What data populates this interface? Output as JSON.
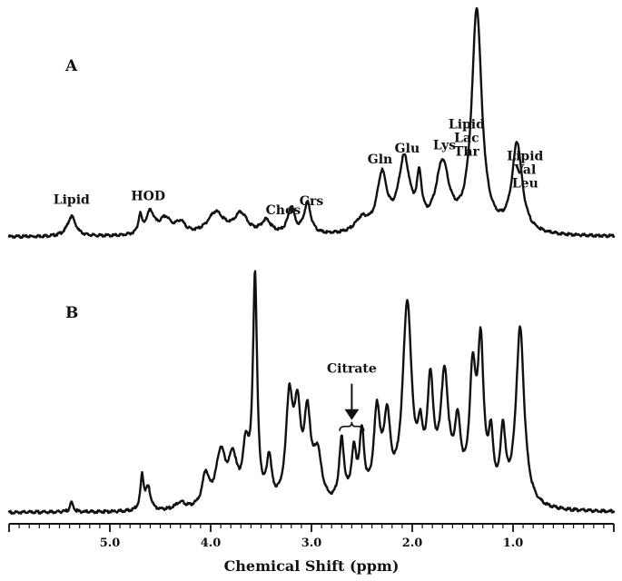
{
  "chart_data": {
    "type": "line",
    "xlabel": "Chemical Shift (ppm)",
    "xlim": [
      6.0,
      0.0
    ],
    "x_reversed": true,
    "x_ticks": [
      {
        "value": 5.0,
        "label": "5.0"
      },
      {
        "value": 4.0,
        "label": "4.0"
      },
      {
        "value": 3.0,
        "label": "3.0"
      },
      {
        "value": 2.0,
        "label": "2.0"
      },
      {
        "value": 1.0,
        "label": "1.0"
      }
    ],
    "panels": [
      {
        "label": "A",
        "baseline": 0.02,
        "peaks": [
          {
            "ppm": 5.38,
            "height": 0.09,
            "width": 0.05
          },
          {
            "ppm": 4.7,
            "height": 0.08,
            "width": 0.02
          },
          {
            "ppm": 4.6,
            "height": 0.1,
            "width": 0.05
          },
          {
            "ppm": 4.45,
            "height": 0.07,
            "width": 0.07
          },
          {
            "ppm": 4.3,
            "height": 0.05,
            "width": 0.06
          },
          {
            "ppm": 3.95,
            "height": 0.1,
            "width": 0.1
          },
          {
            "ppm": 3.7,
            "height": 0.09,
            "width": 0.08
          },
          {
            "ppm": 3.45,
            "height": 0.06,
            "width": 0.06
          },
          {
            "ppm": 3.2,
            "height": 0.12,
            "width": 0.04
          },
          {
            "ppm": 3.04,
            "height": 0.14,
            "width": 0.04
          },
          {
            "ppm": 2.5,
            "height": 0.06,
            "width": 0.08
          },
          {
            "ppm": 2.3,
            "height": 0.25,
            "width": 0.06
          },
          {
            "ppm": 2.08,
            "height": 0.32,
            "width": 0.07
          },
          {
            "ppm": 1.93,
            "height": 0.2,
            "width": 0.03
          },
          {
            "ppm": 1.7,
            "height": 0.3,
            "width": 0.08
          },
          {
            "ppm": 1.36,
            "height": 1.0,
            "width": 0.06
          },
          {
            "ppm": 0.96,
            "height": 0.4,
            "width": 0.06
          }
        ],
        "annotations": [
          {
            "lines": [
              "Lipid"
            ],
            "ppm": 5.38
          },
          {
            "lines": [
              "HOD"
            ],
            "ppm": 4.62
          },
          {
            "lines": [
              "Chos"
            ],
            "ppm": 3.28
          },
          {
            "lines": [
              "Crs"
            ],
            "ppm": 3.0
          },
          {
            "lines": [
              "Gln"
            ],
            "ppm": 2.32
          },
          {
            "lines": [
              "Glu"
            ],
            "ppm": 2.05
          },
          {
            "lines": [
              "Lys"
            ],
            "ppm": 1.68
          },
          {
            "lines": [
              "Lipid",
              "Lac",
              "Thr"
            ],
            "ppm": 1.46
          },
          {
            "lines": [
              "Lipid",
              "Val",
              "Leu"
            ],
            "ppm": 0.88
          }
        ]
      },
      {
        "label": "B",
        "baseline": 0.005,
        "peaks": [
          {
            "ppm": 5.38,
            "height": 0.04,
            "width": 0.02
          },
          {
            "ppm": 4.68,
            "height": 0.14,
            "width": 0.02
          },
          {
            "ppm": 4.62,
            "height": 0.09,
            "width": 0.03
          },
          {
            "ppm": 4.3,
            "height": 0.03,
            "width": 0.06
          },
          {
            "ppm": 4.05,
            "height": 0.13,
            "width": 0.04
          },
          {
            "ppm": 3.9,
            "height": 0.22,
            "width": 0.06
          },
          {
            "ppm": 3.78,
            "height": 0.18,
            "width": 0.05
          },
          {
            "ppm": 3.65,
            "height": 0.22,
            "width": 0.04
          },
          {
            "ppm": 3.56,
            "height": 0.93,
            "width": 0.025
          },
          {
            "ppm": 3.42,
            "height": 0.18,
            "width": 0.03
          },
          {
            "ppm": 3.22,
            "height": 0.42,
            "width": 0.04
          },
          {
            "ppm": 3.14,
            "height": 0.35,
            "width": 0.04
          },
          {
            "ppm": 3.04,
            "height": 0.34,
            "width": 0.04
          },
          {
            "ppm": 2.94,
            "height": 0.2,
            "width": 0.05
          },
          {
            "ppm": 2.7,
            "height": 0.26,
            "width": 0.03
          },
          {
            "ppm": 2.58,
            "height": 0.2,
            "width": 0.03
          },
          {
            "ppm": 2.5,
            "height": 0.27,
            "width": 0.03
          },
          {
            "ppm": 2.35,
            "height": 0.36,
            "width": 0.04
          },
          {
            "ppm": 2.25,
            "height": 0.32,
            "width": 0.04
          },
          {
            "ppm": 2.05,
            "height": 0.82,
            "width": 0.055
          },
          {
            "ppm": 1.92,
            "height": 0.2,
            "width": 0.03
          },
          {
            "ppm": 1.82,
            "height": 0.45,
            "width": 0.04
          },
          {
            "ppm": 1.68,
            "height": 0.5,
            "width": 0.05
          },
          {
            "ppm": 1.55,
            "height": 0.28,
            "width": 0.04
          },
          {
            "ppm": 1.4,
            "height": 0.5,
            "width": 0.04
          },
          {
            "ppm": 1.32,
            "height": 0.6,
            "width": 0.035
          },
          {
            "ppm": 1.22,
            "height": 0.24,
            "width": 0.03
          },
          {
            "ppm": 1.1,
            "height": 0.28,
            "width": 0.03
          },
          {
            "ppm": 0.93,
            "height": 0.74,
            "width": 0.05
          }
        ],
        "annotations": [
          {
            "lines": [
              "Citrate"
            ],
            "ppm": 2.6,
            "arrow": true,
            "bracket": [
              2.72,
              2.48
            ]
          }
        ]
      }
    ]
  }
}
